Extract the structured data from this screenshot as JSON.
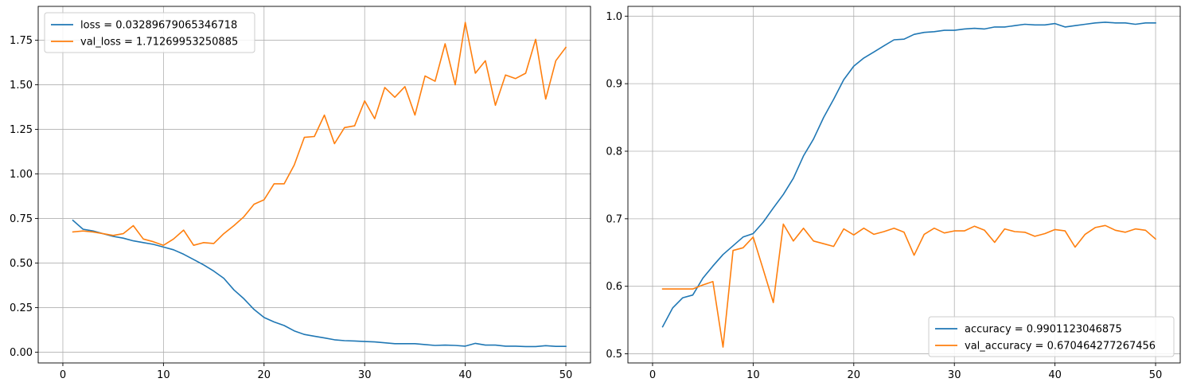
{
  "chart_data": [
    {
      "type": "line",
      "title": "",
      "xlabel": "",
      "ylabel": "",
      "xlim": [
        -2.45,
        52.45
      ],
      "ylim": [
        -0.06,
        1.94
      ],
      "xticks": [
        0,
        10,
        20,
        30,
        40,
        50
      ],
      "xtick_labels": [
        "0",
        "10",
        "20",
        "30",
        "40",
        "50"
      ],
      "yticks": [
        0.0,
        0.25,
        0.5,
        0.75,
        1.0,
        1.25,
        1.5,
        1.75
      ],
      "ytick_labels": [
        "0.00",
        "0.25",
        "0.50",
        "0.75",
        "1.00",
        "1.25",
        "1.50",
        "1.75"
      ],
      "grid": true,
      "legend_position": "upper-left",
      "x": [
        1,
        2,
        3,
        4,
        5,
        6,
        7,
        8,
        9,
        10,
        11,
        12,
        13,
        14,
        15,
        16,
        17,
        18,
        19,
        20,
        21,
        22,
        23,
        24,
        25,
        26,
        27,
        28,
        29,
        30,
        31,
        32,
        33,
        34,
        35,
        36,
        37,
        38,
        39,
        40,
        41,
        42,
        43,
        44,
        45,
        46,
        47,
        48,
        49,
        50
      ],
      "series": [
        {
          "name": "loss = 0.03289679065346718",
          "color": "#1f77b4",
          "values": [
            0.74,
            0.69,
            0.68,
            0.665,
            0.65,
            0.64,
            0.625,
            0.615,
            0.605,
            0.59,
            0.575,
            0.55,
            0.52,
            0.49,
            0.455,
            0.415,
            0.35,
            0.3,
            0.24,
            0.195,
            0.17,
            0.15,
            0.12,
            0.1,
            0.09,
            0.08,
            0.07,
            0.065,
            0.063,
            0.06,
            0.058,
            0.053,
            0.048,
            0.048,
            0.048,
            0.043,
            0.038,
            0.04,
            0.038,
            0.034,
            0.05,
            0.04,
            0.04,
            0.034,
            0.034,
            0.032,
            0.032,
            0.037,
            0.033,
            0.033
          ]
        },
        {
          "name": "val_loss = 1.71269953250885",
          "color": "#ff7f0e",
          "values": [
            0.675,
            0.68,
            0.675,
            0.665,
            0.655,
            0.665,
            0.71,
            0.635,
            0.62,
            0.6,
            0.635,
            0.685,
            0.6,
            0.615,
            0.61,
            0.665,
            0.71,
            0.76,
            0.83,
            0.855,
            0.945,
            0.945,
            1.05,
            1.205,
            1.21,
            1.33,
            1.17,
            1.26,
            1.27,
            1.41,
            1.31,
            1.485,
            1.43,
            1.49,
            1.33,
            1.55,
            1.52,
            1.73,
            1.5,
            1.85,
            1.565,
            1.635,
            1.385,
            1.555,
            1.535,
            1.565,
            1.755,
            1.42,
            1.635,
            1.71
          ]
        }
      ]
    },
    {
      "type": "line",
      "title": "",
      "xlabel": "",
      "ylabel": "",
      "xlim": [
        -2.45,
        52.45
      ],
      "ylim": [
        0.4865,
        1.0145
      ],
      "xticks": [
        0,
        10,
        20,
        30,
        40,
        50
      ],
      "xtick_labels": [
        "0",
        "10",
        "20",
        "30",
        "40",
        "50"
      ],
      "yticks": [
        0.5,
        0.6,
        0.7,
        0.8,
        0.9,
        1.0
      ],
      "ytick_labels": [
        "0.5",
        "0.6",
        "0.7",
        "0.8",
        "0.9",
        "1.0"
      ],
      "grid": true,
      "legend_position": "lower-right",
      "x": [
        1,
        2,
        3,
        4,
        5,
        6,
        7,
        8,
        9,
        10,
        11,
        12,
        13,
        14,
        15,
        16,
        17,
        18,
        19,
        20,
        21,
        22,
        23,
        24,
        25,
        26,
        27,
        28,
        29,
        30,
        31,
        32,
        33,
        34,
        35,
        36,
        37,
        38,
        39,
        40,
        41,
        42,
        43,
        44,
        45,
        46,
        47,
        48,
        49,
        50
      ],
      "series": [
        {
          "name": "accuracy = 0.9901123046875",
          "color": "#1f77b4",
          "values": [
            0.54,
            0.568,
            0.583,
            0.587,
            0.612,
            0.63,
            0.647,
            0.66,
            0.673,
            0.678,
            0.695,
            0.716,
            0.736,
            0.76,
            0.793,
            0.818,
            0.85,
            0.877,
            0.906,
            0.926,
            0.938,
            0.947,
            0.956,
            0.965,
            0.966,
            0.973,
            0.976,
            0.977,
            0.979,
            0.979,
            0.981,
            0.982,
            0.981,
            0.984,
            0.984,
            0.986,
            0.988,
            0.987,
            0.987,
            0.989,
            0.984,
            0.986,
            0.988,
            0.99,
            0.991,
            0.99,
            0.99,
            0.988,
            0.99,
            0.99
          ]
        },
        {
          "name": "val_accuracy = 0.670464277267456",
          "color": "#ff7f0e",
          "values": [
            0.596,
            0.596,
            0.596,
            0.596,
            0.602,
            0.607,
            0.51,
            0.653,
            0.657,
            0.673,
            0.625,
            0.576,
            0.692,
            0.667,
            0.686,
            0.667,
            0.663,
            0.659,
            0.685,
            0.676,
            0.686,
            0.677,
            0.681,
            0.686,
            0.68,
            0.646,
            0.677,
            0.686,
            0.679,
            0.682,
            0.682,
            0.689,
            0.683,
            0.665,
            0.685,
            0.681,
            0.68,
            0.674,
            0.678,
            0.684,
            0.682,
            0.658,
            0.677,
            0.687,
            0.69,
            0.683,
            0.68,
            0.685,
            0.683,
            0.67
          ]
        }
      ]
    }
  ]
}
